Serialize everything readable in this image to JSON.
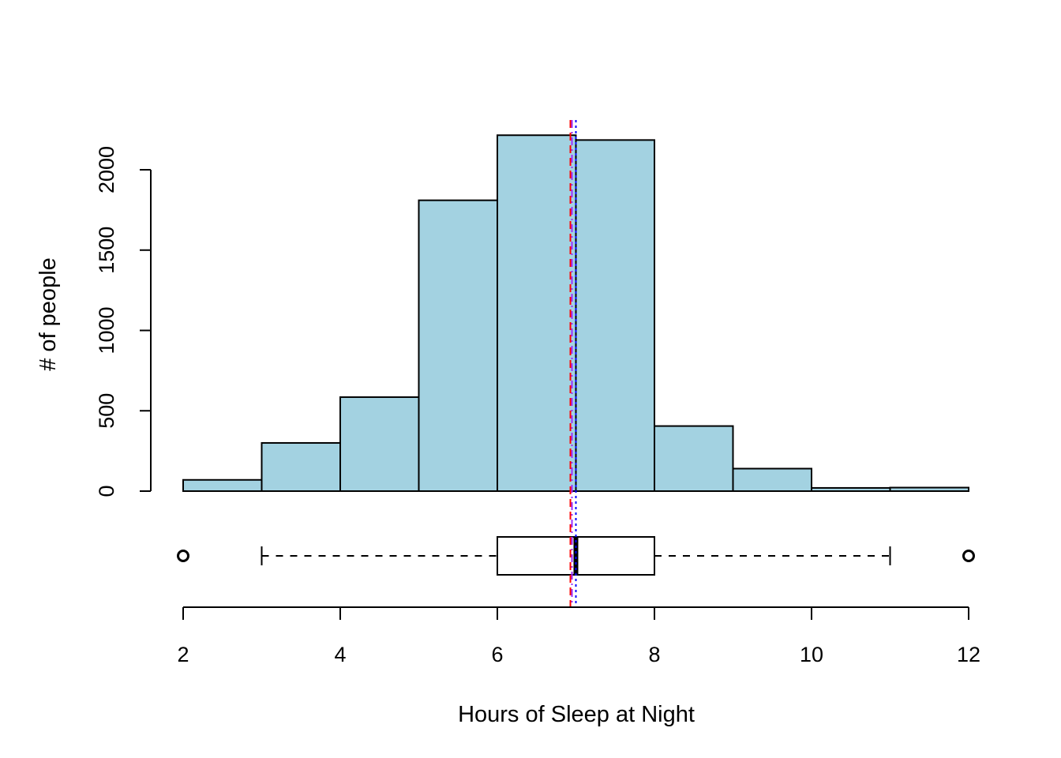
{
  "chart_data": {
    "type": "histogram",
    "title": "",
    "xlabel": "Hours of Sleep at Night",
    "ylabel": "# of people",
    "bins": [
      {
        "x0": 2,
        "x1": 3,
        "count": 70
      },
      {
        "x0": 3,
        "x1": 4,
        "count": 300
      },
      {
        "x0": 4,
        "x1": 5,
        "count": 585
      },
      {
        "x0": 5,
        "x1": 6,
        "count": 1810
      },
      {
        "x0": 6,
        "x1": 7,
        "count": 2215
      },
      {
        "x0": 7,
        "x1": 8,
        "count": 2185
      },
      {
        "x0": 8,
        "x1": 9,
        "count": 405
      },
      {
        "x0": 9,
        "x1": 10,
        "count": 140
      },
      {
        "x0": 10,
        "x1": 11,
        "count": 20
      },
      {
        "x0": 11,
        "x1": 12,
        "count": 22
      }
    ],
    "xlim": [
      2,
      12
    ],
    "ylim": [
      0,
      2300
    ],
    "x_ticks": [
      2,
      4,
      6,
      8,
      10,
      12
    ],
    "y_ticks": [
      0,
      500,
      1000,
      1500,
      2000
    ],
    "bar_color": "#a3d2e1",
    "boxplot": {
      "min_whisker": 3,
      "q1": 6,
      "median": 7,
      "q3": 8,
      "max_whisker": 11,
      "outliers": [
        2,
        12
      ]
    },
    "reference_lines": [
      {
        "x": 6.93,
        "color": "#ff0000",
        "style": "dashed"
      },
      {
        "x": 6.95,
        "color": "#9b30ff",
        "style": "dashdot"
      },
      {
        "x": 7.0,
        "color": "#0000ff",
        "style": "dotted"
      }
    ],
    "grid": false
  }
}
